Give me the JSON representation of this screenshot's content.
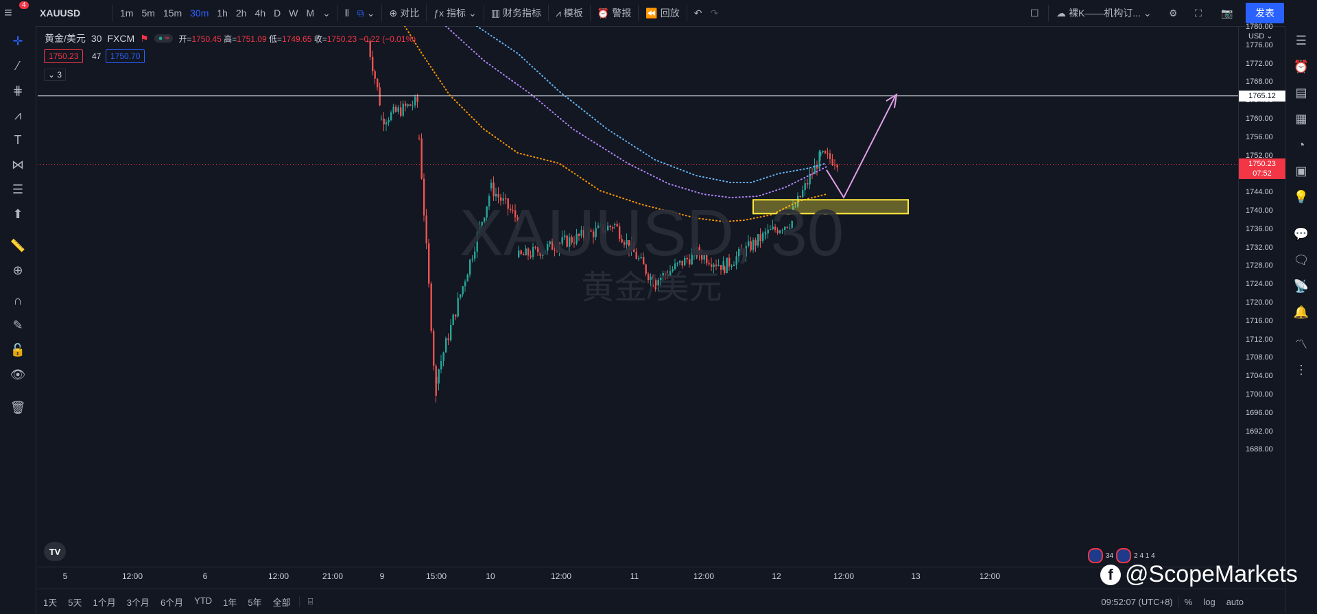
{
  "topbar": {
    "badge": "4",
    "symbol": "XAUUSD",
    "intervals": [
      "1m",
      "5m",
      "15m",
      "30m",
      "1h",
      "2h",
      "4h",
      "D",
      "W",
      "M"
    ],
    "active_interval": "30m",
    "compare": "对比",
    "indicators": "指标",
    "financials": "财务指标",
    "templates": "模板",
    "alerts": "警报",
    "replay": "回放",
    "layout_name": "裸K——机构订...",
    "publish": "发表"
  },
  "legend": {
    "title": "黄金/美元",
    "interval": "30",
    "exchange": "FXCM",
    "open_label": "开=",
    "open": "1750.45",
    "high_label": "高=",
    "high": "1751.09",
    "low_label": "低=",
    "low": "1749.65",
    "close_label": "收=",
    "close": "1750.23",
    "change": "−0.22 (−0.01%)",
    "bid": "1750.23",
    "spread": "47",
    "ask": "1750.70",
    "collapse_count": "3"
  },
  "watermark": {
    "line1": "XAUUSD, 30",
    "line2": "黄金/美元"
  },
  "yaxis": {
    "currency": "USD",
    "ticks": [
      "1780.00",
      "1776.00",
      "1772.00",
      "1768.00",
      "1764.00",
      "1760.00",
      "1756.00",
      "1752.00",
      "1748.00",
      "1744.00",
      "1740.00",
      "1736.00",
      "1732.00",
      "1728.00",
      "1724.00",
      "1720.00",
      "1716.00",
      "1712.00",
      "1708.00",
      "1704.00",
      "1700.00",
      "1696.00",
      "1692.00",
      "1688.00"
    ],
    "hline_label": "1765.12",
    "last_price": "1750.23",
    "countdown": "07:52"
  },
  "xaxis": {
    "ticks": [
      "5",
      "12:00",
      "6",
      "12:00",
      "21:00",
      "9",
      "15:00",
      "10",
      "12:00",
      "11",
      "12:00",
      "12",
      "12:00",
      "13",
      "12:00"
    ]
  },
  "bottombar": {
    "ranges": [
      "1天",
      "5天",
      "1个月",
      "3个月",
      "6个月",
      "YTD",
      "1年",
      "5年",
      "全部"
    ],
    "time": "09:52:07 (UTC+8)",
    "percent": "%",
    "log": "log",
    "auto": "auto"
  },
  "events": {
    "count_a": "34",
    "count_b": "2 4 1 4"
  },
  "social_watermark": "@ScopeMarkets",
  "colors": {
    "up": "#26a69a",
    "down": "#ef5350",
    "zone": "#ffeb3b",
    "arrow": "#e1a0e8"
  }
}
